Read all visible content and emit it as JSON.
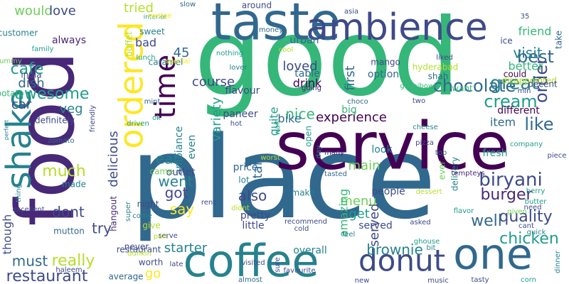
{
  "palette": {
    "c1": "#440154",
    "c2": "#482878",
    "c3": "#3e4a89",
    "c4": "#31688e",
    "c5": "#26828e",
    "c6": "#1f9e89",
    "c7": "#35b779",
    "c8": "#6ece58",
    "c9": "#b5de2b",
    "c10": "#fde725"
  },
  "words": [
    {
      "text": "place",
      "color": "c4"
    },
    {
      "text": "good",
      "color": "c7"
    },
    {
      "text": "food",
      "color": "c2"
    },
    {
      "text": "service",
      "color": "c1"
    },
    {
      "text": "taste",
      "color": "c4"
    },
    {
      "text": "coffee",
      "color": "c5"
    },
    {
      "text": "ambience",
      "color": "c3"
    },
    {
      "text": "one",
      "color": "c4"
    },
    {
      "text": "shake",
      "color": "c5"
    },
    {
      "text": "donut",
      "color": "c3"
    },
    {
      "text": "ordered",
      "color": "c10"
    },
    {
      "text": "time",
      "color": "c1"
    },
    {
      "text": "chocolate",
      "color": "c4"
    },
    {
      "text": "best",
      "color": "c4"
    },
    {
      "text": "visit",
      "color": "c5"
    },
    {
      "text": "like",
      "color": "c4"
    },
    {
      "text": "great",
      "color": "c5"
    },
    {
      "text": "cream",
      "color": "c6"
    },
    {
      "text": "order",
      "color": "c3"
    },
    {
      "text": "experience",
      "color": "c1"
    },
    {
      "text": "biryani",
      "color": "c3"
    },
    {
      "text": "burger",
      "color": "c2"
    },
    {
      "text": "quality",
      "color": "c3"
    },
    {
      "text": "well",
      "color": "c4"
    },
    {
      "text": "chicken",
      "color": "c6"
    },
    {
      "text": "brownie",
      "color": "c5"
    },
    {
      "text": "restaurant",
      "color": "c3"
    },
    {
      "text": "really",
      "color": "c9"
    },
    {
      "text": "must",
      "color": "c4"
    },
    {
      "text": "much",
      "color": "c9"
    },
    {
      "text": "awesome",
      "color": "c6"
    },
    {
      "text": "cafe",
      "color": "c6"
    },
    {
      "text": "delicious",
      "color": "c3"
    },
    {
      "text": "nice",
      "color": "c7"
    },
    {
      "text": "loved",
      "color": "c3"
    },
    {
      "text": "course",
      "color": "c3"
    },
    {
      "text": "tried",
      "color": "c9"
    },
    {
      "text": "would",
      "color": "c8"
    },
    {
      "text": "love",
      "color": "c3"
    },
    {
      "text": "dish",
      "color": "c4"
    },
    {
      "text": "car",
      "color": "c3"
    },
    {
      "text": "veg",
      "color": "c5"
    },
    {
      "text": "dont",
      "color": "c3"
    },
    {
      "text": "try",
      "color": "c3"
    },
    {
      "text": "staff",
      "color": "c4"
    },
    {
      "text": "served",
      "color": "c3"
    },
    {
      "text": "menu",
      "color": "c8"
    },
    {
      "text": "get",
      "color": "c6"
    },
    {
      "text": "main",
      "color": "c8"
    },
    {
      "text": "also",
      "color": "c3"
    },
    {
      "text": "went",
      "color": "c5"
    },
    {
      "text": "got",
      "color": "c3"
    },
    {
      "text": "eat",
      "color": "c5"
    },
    {
      "text": "say",
      "color": "c10"
    },
    {
      "text": "starter",
      "color": "c5"
    },
    {
      "text": "variety",
      "color": "c6"
    },
    {
      "text": "quite",
      "color": "c6"
    },
    {
      "text": "first",
      "color": "c4"
    },
    {
      "text": "friend",
      "color": "c7"
    },
    {
      "text": "better",
      "color": "c7"
    },
    {
      "text": "item",
      "color": "c4"
    },
    {
      "text": "bike",
      "color": "c4"
    },
    {
      "text": "amazing",
      "color": "c7"
    },
    {
      "text": "even",
      "color": "c5"
    },
    {
      "text": "ambiance",
      "color": "c5"
    },
    {
      "text": "though",
      "color": "c3"
    },
    {
      "text": "go",
      "color": "c10"
    },
    {
      "text": "always",
      "color": "c2"
    },
    {
      "text": "bad",
      "color": "c3"
    },
    {
      "text": "45",
      "color": "c4"
    },
    {
      "text": "sweet",
      "color": "c5"
    },
    {
      "text": "caramel",
      "color": "c5"
    },
    {
      "text": "urban",
      "color": "c4"
    },
    {
      "text": "table",
      "color": "c4"
    },
    {
      "text": "drink",
      "color": "c1"
    },
    {
      "text": "option",
      "color": "c4"
    },
    {
      "text": "mango",
      "color": "c3"
    },
    {
      "text": "flavour",
      "color": "c3"
    },
    {
      "text": "paneer",
      "color": "c3"
    },
    {
      "text": "around",
      "color": "c3"
    },
    {
      "text": "look",
      "color": "c5"
    },
    {
      "text": "people",
      "color": "c3"
    },
    {
      "text": "make",
      "color": "c5"
    },
    {
      "text": "served",
      "color": "c3"
    },
    {
      "text": "overall",
      "color": "c5"
    },
    {
      "text": "pretty",
      "color": "c3"
    },
    {
      "text": "little",
      "color": "c3"
    },
    {
      "text": "price",
      "color": "c4"
    },
    {
      "text": "lot",
      "color": "c5"
    },
    {
      "text": "night",
      "color": "c3"
    },
    {
      "text": "outlet",
      "color": "c3"
    },
    {
      "text": "worth",
      "color": "c3"
    },
    {
      "text": "definitely",
      "color": "c3"
    },
    {
      "text": "made",
      "color": "c5"
    },
    {
      "text": "mutton",
      "color": "c4"
    },
    {
      "text": "give",
      "color": "c9"
    },
    {
      "text": "fresh",
      "color": "c6"
    },
    {
      "text": "different",
      "color": "c1"
    },
    {
      "text": "could",
      "color": "c1"
    },
    {
      "text": "delivery",
      "color": "c5"
    },
    {
      "text": "hyderabad",
      "color": "c9"
    },
    {
      "text": "want",
      "color": "c7"
    },
    {
      "text": "shah",
      "color": "c4"
    },
    {
      "text": "big",
      "color": "c7"
    },
    {
      "text": "ever",
      "color": "c8"
    },
    {
      "text": "buffet",
      "color": "c9"
    },
    {
      "text": "disappointed",
      "color": "c9"
    },
    {
      "text": "decent",
      "color": "c3"
    },
    {
      "text": "ice",
      "color": "c3"
    },
    {
      "text": "take",
      "color": "c4"
    },
    {
      "text": "customer",
      "color": "c5"
    },
    {
      "text": "potato",
      "color": "c7"
    },
    {
      "text": "india",
      "color": "c3"
    },
    {
      "text": "never",
      "color": "c3"
    },
    {
      "text": "average",
      "color": "c4"
    },
    {
      "text": "came",
      "color": "c8"
    },
    {
      "text": "hangout",
      "color": "c2"
    },
    {
      "text": "restaurant",
      "color": "c3"
    },
    {
      "text": "didnt",
      "color": "c9"
    },
    {
      "text": "super",
      "color": "c5"
    },
    {
      "text": "come",
      "color": "c5"
    },
    {
      "text": "excellent",
      "color": "c3"
    },
    {
      "text": "haleem",
      "color": "c3"
    },
    {
      "text": "thing",
      "color": "c5"
    },
    {
      "text": "perfect",
      "color": "c5"
    },
    {
      "text": "friendly",
      "color": "c3"
    },
    {
      "text": "zomato",
      "color": "c4"
    },
    {
      "text": "family",
      "color": "c6"
    },
    {
      "text": "yummy",
      "color": "c8"
    },
    {
      "text": "interior",
      "color": "c6"
    },
    {
      "text": "lunch",
      "color": "c6"
    },
    {
      "text": "special",
      "color": "c10"
    },
    {
      "text": "nothing",
      "color": "c6"
    },
    {
      "text": "lover",
      "color": "c5"
    },
    {
      "text": "cool",
      "color": "c9"
    },
    {
      "text": "money",
      "color": "c4"
    },
    {
      "text": "wedge",
      "color": "c10"
    },
    {
      "text": "slow",
      "color": "c4"
    },
    {
      "text": "asia",
      "color": "c3"
    },
    {
      "text": "35",
      "color": "c3"
    },
    {
      "text": "liked",
      "color": "c3"
    },
    {
      "text": "min",
      "color": "c3"
    },
    {
      "text": "gachibowli",
      "color": "c7"
    },
    {
      "text": "two",
      "color": "c3"
    },
    {
      "text": "going",
      "color": "c2"
    },
    {
      "text": "choco",
      "color": "c4"
    },
    {
      "text": "hot",
      "color": "c3"
    },
    {
      "text": "mint",
      "color": "c4"
    },
    {
      "text": "driven",
      "color": "c6"
    },
    {
      "text": "ok",
      "color": "c6"
    },
    {
      "text": "wait",
      "color": "c6"
    },
    {
      "text": "open",
      "color": "c6"
    },
    {
      "text": "day",
      "color": "c5"
    },
    {
      "text": "many",
      "color": "c2"
    },
    {
      "text": "worst",
      "color": "c9"
    },
    {
      "text": "tasted",
      "color": "c4"
    },
    {
      "text": "cheese",
      "color": "c5"
    },
    {
      "text": "pizza",
      "color": "c3"
    },
    {
      "text": "top",
      "color": "c4"
    },
    {
      "text": "tempteys",
      "color": "c2"
    },
    {
      "text": "company",
      "color": "c6"
    },
    {
      "text": "piece",
      "color": "c3"
    },
    {
      "text": "berry",
      "color": "c6"
    },
    {
      "text": "dessert",
      "color": "c9"
    },
    {
      "text": "butter",
      "color": "c6"
    },
    {
      "text": "need",
      "color": "c3"
    },
    {
      "text": "given",
      "color": "c8"
    },
    {
      "text": "flavor",
      "color": "c6"
    },
    {
      "text": "cant",
      "color": "c3"
    },
    {
      "text": "quick",
      "color": "c5"
    },
    {
      "text": "dinner",
      "color": "c5"
    },
    {
      "text": "feel",
      "color": "c5"
    },
    {
      "text": "recommend",
      "color": "c3"
    },
    {
      "text": "cold",
      "color": "c3"
    },
    {
      "text": "asked",
      "color": "c3"
    },
    {
      "text": "ghouse",
      "color": "c6"
    },
    {
      "text": "bit",
      "color": "c5"
    },
    {
      "text": "new",
      "color": "c3"
    },
    {
      "text": "music",
      "color": "c3"
    },
    {
      "text": "tasty",
      "color": "c3"
    },
    {
      "text": "corn",
      "color": "c6"
    },
    {
      "text": "sure",
      "color": "c3"
    },
    {
      "text": "visited",
      "color": "c3"
    },
    {
      "text": "almost",
      "color": "c4"
    },
    {
      "text": "favourite",
      "color": "c3"
    },
    {
      "text": "serve",
      "color": "c3"
    },
    {
      "text": "rent",
      "color": "c3"
    },
    {
      "text": "part",
      "color": "c9"
    },
    {
      "text": "late",
      "color": "c3"
    },
    {
      "text": "dunkin",
      "color": "c9"
    },
    {
      "text": "donuts",
      "color": "c3"
    },
    {
      "text": "took",
      "color": "c3"
    },
    {
      "text": "way",
      "color": "c5"
    },
    {
      "text": "along",
      "color": "c5"
    },
    {
      "text": "fry",
      "color": "c3"
    }
  ]
}
